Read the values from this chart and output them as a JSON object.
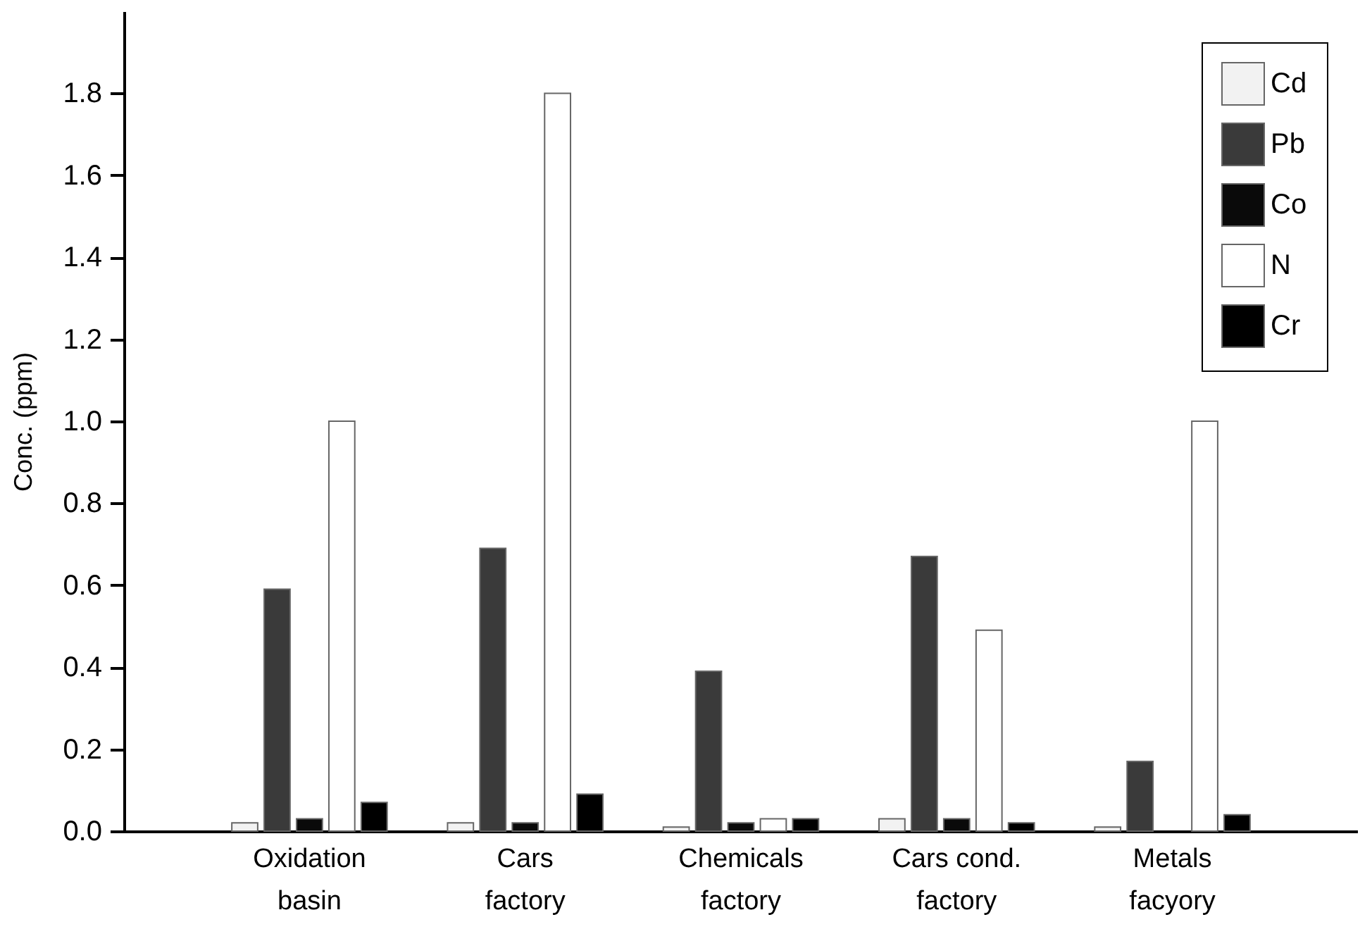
{
  "chart_data": {
    "type": "bar",
    "ylabel": "Conc. (ppm)",
    "categories": [
      "Oxidation basin",
      "Cars factory",
      "Chemicals factory",
      "Cars cond. factory",
      "Metals facyory"
    ],
    "series": [
      {
        "name": "Cd",
        "color": "#f2f2f2",
        "values": [
          0.02,
          0.02,
          0.01,
          0.03,
          0.01
        ]
      },
      {
        "name": "Pb",
        "color": "#3a3a3a",
        "values": [
          0.59,
          0.69,
          0.39,
          0.67,
          0.17
        ]
      },
      {
        "name": "Co",
        "color": "#0a0a0a",
        "values": [
          0.03,
          0.02,
          0.02,
          0.03,
          null
        ]
      },
      {
        "name": "N",
        "color": "#ffffff",
        "values": [
          1.0,
          1.8,
          0.03,
          0.49,
          1.0
        ]
      },
      {
        "name": "Cr",
        "color": "#000000",
        "values": [
          0.07,
          0.09,
          0.03,
          0.02,
          0.04
        ]
      }
    ],
    "ylim": [
      0,
      2.0
    ],
    "yticks": [
      {
        "value": 0,
        "label": "0.0"
      },
      {
        "value": 0.2,
        "label": "0.2"
      },
      {
        "value": 0.4,
        "label": "0.4"
      },
      {
        "value": 0.6,
        "label": "0.6"
      },
      {
        "value": 0.8,
        "label": "0.8"
      },
      {
        "value": 1.0,
        "label": "1.0"
      },
      {
        "value": 1.2,
        "label": "1.2"
      },
      {
        "value": 1.4,
        "label": "1.4"
      },
      {
        "value": 1.6,
        "label": "1.6"
      },
      {
        "value": 1.8,
        "label": "1.8"
      }
    ],
    "grid": false,
    "legend": "top right"
  }
}
